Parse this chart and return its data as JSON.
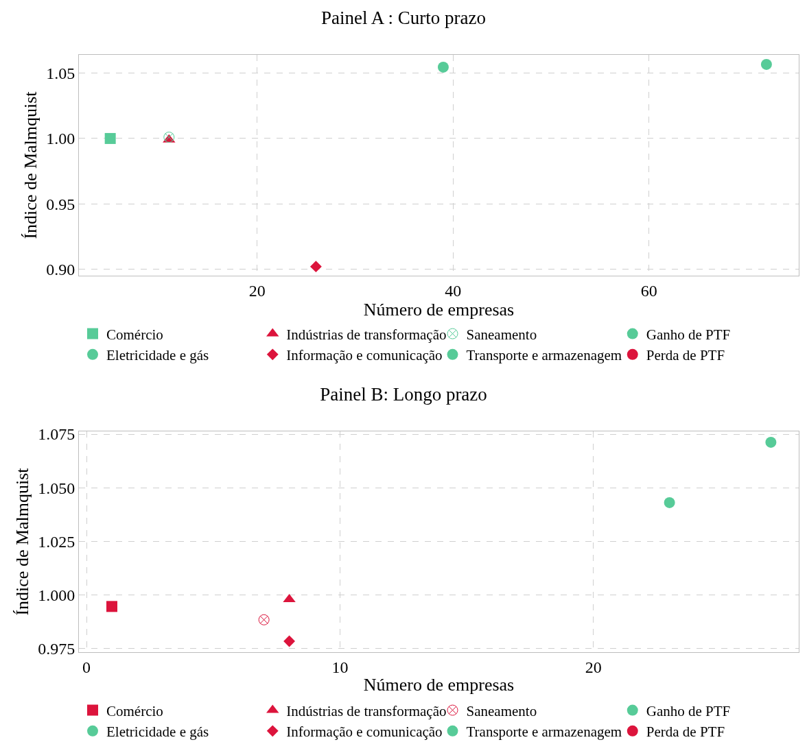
{
  "chart_data": [
    {
      "type": "scatter",
      "title": "Painel A : Curto prazo",
      "xlabel": "Número de empresas",
      "ylabel": "Índice de Malmquist",
      "xlim": [
        1.8,
        75.3
      ],
      "ylim": [
        0.895,
        1.064
      ],
      "xticks": [
        20,
        40,
        60
      ],
      "yticks": [
        1.05,
        {
          "value": 1.0,
          "label": "1.00"
        },
        0.95,
        {
          "value": 0.9,
          "label": "0.90"
        }
      ],
      "grid": true,
      "legend": "bottom",
      "series": [
        {
          "name": "Comércio",
          "marker": "square",
          "color": "#57cb98",
          "x": [
            5
          ],
          "values": [
            1.0
          ]
        },
        {
          "name": "Indústrias de transformação",
          "marker": "triangle",
          "color": "#dc143c",
          "x": [
            11
          ],
          "values": [
            0.999
          ]
        },
        {
          "name": "Saneamento",
          "marker": "cross",
          "color": "#57cb98",
          "x": [
            11
          ],
          "values": [
            1.001
          ]
        },
        {
          "name": "Ganho de PTF",
          "marker": "circle",
          "color": "#57cb98"
        },
        {
          "name": "Eletricidade e gás",
          "marker": "circle",
          "color": "#57cb98",
          "x": [
            72
          ],
          "values": [
            1.0567
          ]
        },
        {
          "name": "Informação e comunicação",
          "marker": "diamond",
          "color": "#dc143c",
          "x": [
            26
          ],
          "values": [
            0.902
          ]
        },
        {
          "name": "Transporte e armazenagem",
          "marker": "circle",
          "color": "#57cb98",
          "x": [
            39
          ],
          "values": [
            1.0546
          ]
        },
        {
          "name": "Perda de PTF",
          "marker": "circle",
          "color": "#dc143c"
        }
      ]
    },
    {
      "type": "scatter",
      "title": "Painel B: Longo prazo",
      "xlabel": "Número de empresas",
      "ylabel": "Índice de Malmquist",
      "xlim": [
        -0.3,
        28.1
      ],
      "ylim": [
        0.9734,
        1.0763
      ],
      "xticks": [
        0,
        10,
        20
      ],
      "yticks": [
        1.075,
        {
          "value": 1.05,
          "label": "1.050"
        },
        1.025,
        {
          "value": 1.0,
          "label": "1.000"
        },
        0.975
      ],
      "grid": true,
      "legend": "bottom",
      "series": [
        {
          "name": "Comércio",
          "marker": "square",
          "color": "#dc143c",
          "x": [
            1
          ],
          "values": [
            0.9947
          ]
        },
        {
          "name": "Indústrias de transformação",
          "marker": "triangle",
          "color": "#dc143c",
          "x": [
            8
          ],
          "values": [
            0.998
          ]
        },
        {
          "name": "Saneamento",
          "marker": "cross",
          "color": "#dc143c",
          "x": [
            7
          ],
          "values": [
            0.9885
          ]
        },
        {
          "name": "Ganho de PTF",
          "marker": "circle",
          "color": "#57cb98"
        },
        {
          "name": "Eletricidade e gás",
          "marker": "circle",
          "color": "#57cb98",
          "x": [
            27
          ],
          "values": [
            1.0712
          ]
        },
        {
          "name": "Informação e comunicação",
          "marker": "diamond",
          "color": "#dc143c",
          "x": [
            8
          ],
          "values": [
            0.9785
          ]
        },
        {
          "name": "Transporte e armazenagem",
          "marker": "circle",
          "color": "#57cb98",
          "x": [
            23
          ],
          "values": [
            1.0431
          ]
        },
        {
          "name": "Perda de PTF",
          "marker": "circle",
          "color": "#dc143c"
        }
      ]
    }
  ]
}
